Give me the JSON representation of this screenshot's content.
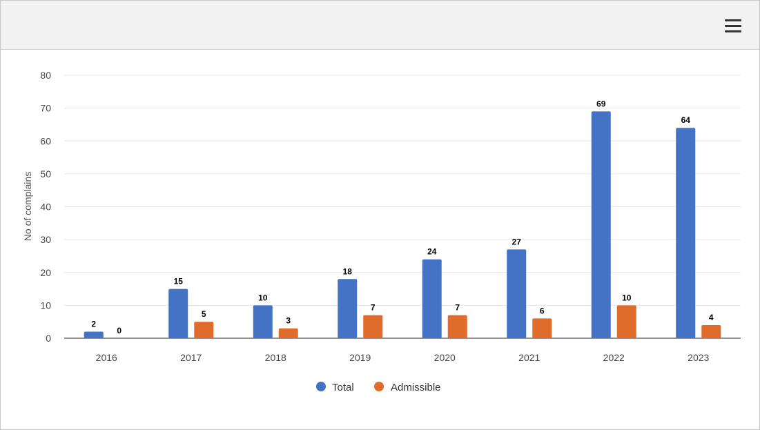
{
  "toolbar": {
    "menu_icon": "hamburger-menu-icon"
  },
  "chart_data": {
    "type": "bar",
    "categories": [
      "2016",
      "2017",
      "2018",
      "2019",
      "2020",
      "2021",
      "2022",
      "2023"
    ],
    "series": [
      {
        "name": "Total",
        "values": [
          2,
          15,
          10,
          18,
          24,
          27,
          69,
          64
        ],
        "color": "#4472c4"
      },
      {
        "name": "Admissible",
        "values": [
          0,
          5,
          3,
          7,
          7,
          6,
          10,
          4
        ],
        "color": "#e06c2c"
      }
    ],
    "ylabel": "No of complains",
    "xlabel": "",
    "ylim": [
      0,
      80
    ],
    "yticks": [
      0,
      10,
      20,
      30,
      40,
      50,
      60,
      70,
      80
    ],
    "grid": true,
    "legend": "bottom"
  }
}
